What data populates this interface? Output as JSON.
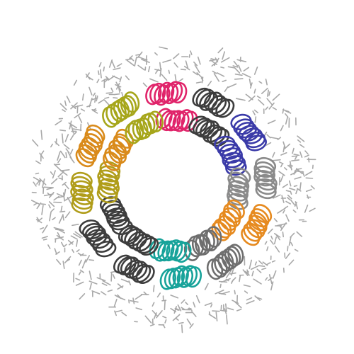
{
  "image": {
    "subject": "protein-ring-complex",
    "background_color": "#ffffff",
    "ring_stick_color": "#a8a8a8",
    "helix_count": 12,
    "helix_colors": [
      "#e0246a",
      "#3d3d3d",
      "#3a3aa8",
      "#8a8a8a",
      "#e68a1f",
      "#6e6e6e",
      "#17a39a",
      "#3d3d3d",
      "#3d3d3d",
      "#b09d1a",
      "#d98a1a",
      "#a6a61a"
    ]
  }
}
